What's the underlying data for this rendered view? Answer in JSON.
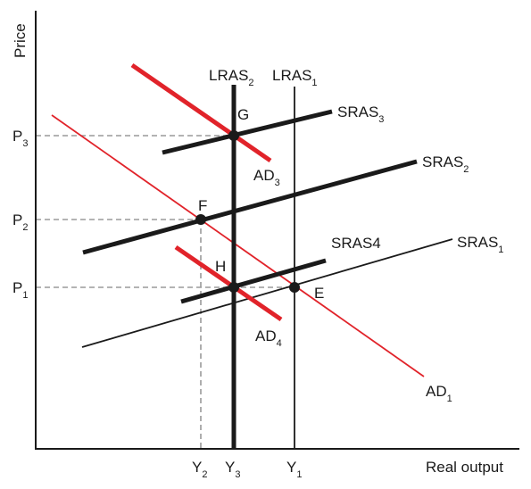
{
  "axes": {
    "y_label": "Price",
    "x_label": "Real output",
    "prices": [
      {
        "main": "P",
        "sub": "3"
      },
      {
        "main": "P",
        "sub": "2"
      },
      {
        "main": "P",
        "sub": "1"
      }
    ],
    "outputs": [
      {
        "main": "Y",
        "sub": "2"
      },
      {
        "main": "Y",
        "sub": "3"
      },
      {
        "main": "Y",
        "sub": "1"
      }
    ]
  },
  "curves": {
    "lras2": {
      "main": "LRAS",
      "sub": "2"
    },
    "lras1": {
      "main": "LRAS",
      "sub": "1"
    },
    "sras3": {
      "main": "SRAS",
      "sub": "3"
    },
    "sras2": {
      "main": "SRAS",
      "sub": "2"
    },
    "sras4": {
      "main": "SRAS4"
    },
    "sras1": {
      "main": "SRAS",
      "sub": "1"
    },
    "ad3": {
      "main": "AD",
      "sub": "3"
    },
    "ad4": {
      "main": "AD",
      "sub": "4"
    },
    "ad1": {
      "main": "AD",
      "sub": "1"
    }
  },
  "points": {
    "g": "G",
    "f": "F",
    "h": "H",
    "e": "E"
  },
  "colors": {
    "axis": "#1a1a1a",
    "curve_dark": "#1a1a1a",
    "curve_red": "#e1232a",
    "guide": "#9a9a9a"
  }
}
